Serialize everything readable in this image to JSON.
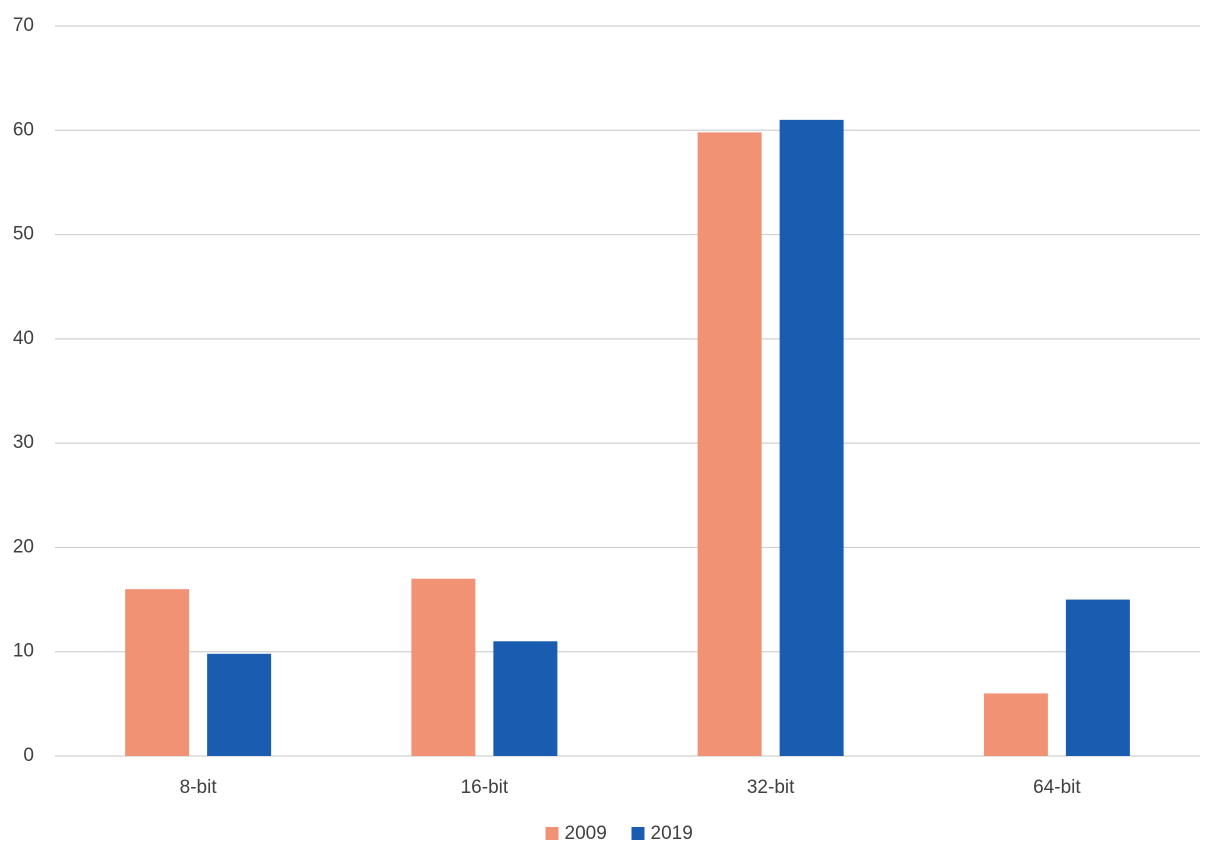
{
  "chart_data": {
    "type": "bar",
    "categories": [
      "8-bit",
      "16-bit",
      "32-bit",
      "64-bit"
    ],
    "series": [
      {
        "name": "2009",
        "color": "#f19274",
        "values": [
          16,
          17,
          59.8,
          6
        ]
      },
      {
        "name": "2019",
        "color": "#1a5cb0",
        "values": [
          9.8,
          11,
          61,
          15
        ]
      }
    ],
    "ylim": [
      0,
      70
    ],
    "yticks": [
      0,
      10,
      20,
      30,
      40,
      50,
      60,
      70
    ],
    "grid": true,
    "legend": "bottom"
  }
}
